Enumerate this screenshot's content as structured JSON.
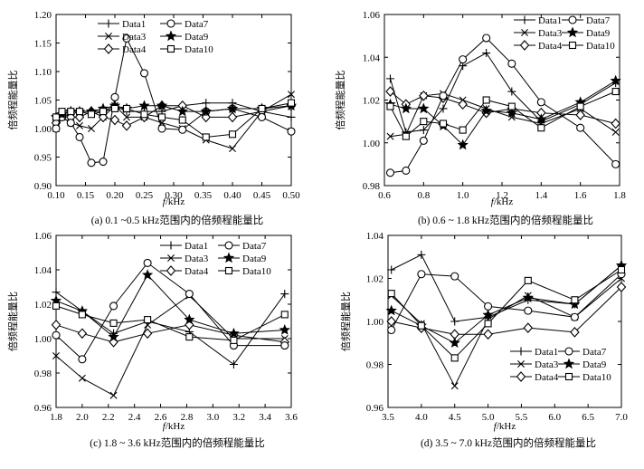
{
  "chart_data": [
    {
      "type": "line",
      "xlabel_italic": "f",
      "xlabel_unit": "/kHz",
      "ylabel": "倍频程能量比",
      "caption": "(a) 0.1 ~0.5 kHz范围内的倍频程能量比",
      "xlim": [
        0.1,
        0.5
      ],
      "ylim": [
        0.9,
        1.2
      ],
      "xticks": [
        0.1,
        0.15,
        0.2,
        0.25,
        0.3,
        0.35,
        0.4,
        0.45,
        0.5
      ],
      "xtick_labels": [
        "0.10",
        "0.15",
        "0.20",
        "0.25",
        "0.30",
        "0.35",
        "0.40",
        "0.45",
        "0.50"
      ],
      "yticks": [
        0.9,
        0.95,
        1.0,
        1.05,
        1.1,
        1.15,
        1.2
      ],
      "ytick_labels": [
        "0.90",
        "0.95",
        "1.00",
        "1.05",
        "1.10",
        "1.15",
        "1.20"
      ],
      "legend_location": "top-left",
      "x": [
        0.1,
        0.11,
        0.125,
        0.14,
        0.16,
        0.18,
        0.2,
        0.22,
        0.25,
        0.28,
        0.315,
        0.355,
        0.4,
        0.45,
        0.5
      ],
      "series": [
        {
          "name": "Data1",
          "marker": "plus",
          "values": [
            1.0,
            1.02,
            1.025,
            1.03,
            1.03,
            1.03,
            1.04,
            1.03,
            1.03,
            1.03,
            1.04,
            1.045,
            1.045,
            1.03,
            1.02
          ]
        },
        {
          "name": "Data3",
          "marker": "x",
          "values": [
            1.0,
            1.02,
            1.01,
            1.005,
            1.0,
            1.02,
            1.04,
            1.02,
            1.02,
            1.01,
            1.0,
            0.98,
            0.965,
            1.03,
            1.06
          ]
        },
        {
          "name": "Data4",
          "marker": "diamond",
          "values": [
            1.01,
            1.025,
            1.02,
            1.02,
            1.03,
            1.02,
            1.015,
            1.005,
            1.02,
            1.04,
            1.04,
            1.02,
            1.02,
            1.03,
            1.04
          ]
        },
        {
          "name": "Data7",
          "marker": "circle",
          "values": [
            1.0,
            1.02,
            1.01,
            0.985,
            0.94,
            0.942,
            1.055,
            1.158,
            1.097,
            1.0,
            0.998,
            1.03,
            1.035,
            1.02,
            0.995
          ]
        },
        {
          "name": "Data9",
          "marker": "star",
          "values": [
            1.02,
            1.025,
            1.03,
            1.03,
            1.03,
            1.035,
            1.04,
            1.035,
            1.04,
            1.04,
            1.03,
            1.03,
            1.035,
            1.035,
            1.04
          ]
        },
        {
          "name": "Data10",
          "marker": "square",
          "values": [
            1.02,
            1.03,
            1.03,
            1.03,
            1.025,
            1.03,
            1.035,
            1.035,
            1.025,
            1.02,
            1.015,
            0.985,
            0.99,
            1.035,
            1.045
          ]
        }
      ]
    },
    {
      "type": "line",
      "xlabel_italic": "f",
      "xlabel_unit": "/kHz",
      "ylabel": "倍频程能量比",
      "caption": "(b) 0.6 ~ 1.8 kHz范围内的倍频程能量比",
      "xlim": [
        0.6,
        1.8
      ],
      "ylim": [
        0.98,
        1.06
      ],
      "xticks": [
        0.6,
        0.8,
        1.0,
        1.2,
        1.4,
        1.6,
        1.8
      ],
      "xtick_labels": [
        "0.6",
        "0.8",
        "1.0",
        "1.2",
        "1.4",
        "1.6",
        "1.8"
      ],
      "yticks": [
        0.98,
        1.0,
        1.02,
        1.04,
        1.06
      ],
      "ytick_labels": [
        "0.98",
        "1.00",
        "1.02",
        "1.04",
        "1.06"
      ],
      "legend_location": "top-right",
      "x": [
        0.63,
        0.71,
        0.8,
        0.9,
        1.0,
        1.12,
        1.25,
        1.4,
        1.6,
        1.78
      ],
      "series": [
        {
          "name": "Data1",
          "marker": "plus",
          "values": [
            1.03,
            1.005,
            1.006,
            1.016,
            1.036,
            1.042,
            1.024,
            1.01,
            1.018,
            1.028
          ]
        },
        {
          "name": "Data3",
          "marker": "x",
          "values": [
            1.003,
            1.004,
            1.022,
            1.023,
            1.02,
            1.016,
            1.012,
            1.009,
            1.016,
            1.005
          ]
        },
        {
          "name": "Data4",
          "marker": "diamond",
          "values": [
            1.024,
            1.018,
            1.022,
            1.021,
            1.018,
            1.014,
            1.016,
            1.014,
            1.013,
            1.009
          ]
        },
        {
          "name": "Data7",
          "marker": "circle",
          "values": [
            0.986,
            0.987,
            1.001,
            1.022,
            1.039,
            1.049,
            1.037,
            1.019,
            1.007,
            0.99
          ]
        },
        {
          "name": "Data9",
          "marker": "star",
          "values": [
            1.018,
            1.016,
            1.016,
            1.008,
            0.999,
            1.015,
            1.014,
            1.011,
            1.019,
            1.029
          ]
        },
        {
          "name": "Data10",
          "marker": "square",
          "values": [
            1.017,
            1.003,
            1.01,
            1.009,
            1.006,
            1.02,
            1.017,
            1.007,
            1.017,
            1.024
          ]
        }
      ]
    },
    {
      "type": "line",
      "xlabel_italic": "f",
      "xlabel_unit": "/kHz",
      "ylabel": "倍频程能量比",
      "caption": "(c) 1.8 ~ 3.6 kHz范围内的倍频程能量比",
      "xlim": [
        1.8,
        3.6
      ],
      "ylim": [
        0.96,
        1.06
      ],
      "xticks": [
        1.8,
        2.0,
        2.2,
        2.4,
        2.6,
        2.8,
        3.0,
        3.2,
        3.4,
        3.6
      ],
      "xtick_labels": [
        "1.8",
        "2.0",
        "2.2",
        "2.4",
        "2.6",
        "2.8",
        "3.0",
        "3.2",
        "3.4",
        "3.6"
      ],
      "yticks": [
        0.96,
        0.98,
        1.0,
        1.02,
        1.04,
        1.06
      ],
      "ytick_labels": [
        "0.96",
        "0.98",
        "1.00",
        "1.02",
        "1.04",
        "1.06"
      ],
      "legend_location": "top-right",
      "x": [
        1.8,
        2.0,
        2.24,
        2.5,
        2.82,
        3.16,
        3.55
      ],
      "series": [
        {
          "name": "Data1",
          "marker": "plus",
          "values": [
            1.027,
            1.016,
            1.003,
            1.01,
            1.004,
            0.985,
            1.026
          ]
        },
        {
          "name": "Data3",
          "marker": "x",
          "values": [
            0.99,
            0.977,
            0.967,
            1.008,
            1.025,
            1.0,
            1.0
          ]
        },
        {
          "name": "Data4",
          "marker": "diamond",
          "values": [
            1.008,
            1.003,
            0.998,
            1.003,
            1.008,
            1.002,
            0.998
          ]
        },
        {
          "name": "Data7",
          "marker": "circle",
          "values": [
            1.002,
            0.988,
            1.019,
            1.044,
            1.026,
            0.996,
            0.996
          ]
        },
        {
          "name": "Data9",
          "marker": "star",
          "values": [
            1.022,
            1.016,
            1.001,
            1.037,
            1.011,
            1.003,
            1.005
          ]
        },
        {
          "name": "Data10",
          "marker": "square",
          "values": [
            1.019,
            1.014,
            1.009,
            1.011,
            1.001,
            0.999,
            1.014
          ]
        }
      ]
    },
    {
      "type": "line",
      "xlabel_italic": "f",
      "xlabel_unit": "/kHz",
      "ylabel": "倍频程能量比",
      "caption": "(d) 3.5 ~ 7.0 kHz范围内的倍频程能量比",
      "xlim": [
        3.5,
        7.0
      ],
      "ylim": [
        0.96,
        1.04
      ],
      "xticks": [
        3.5,
        4.0,
        4.5,
        5.0,
        5.5,
        6.0,
        6.5,
        7.0
      ],
      "xtick_labels": [
        "3.5",
        "4.0",
        "4.5",
        "5.0",
        "5.5",
        "6.0",
        "6.5",
        "7.0"
      ],
      "yticks": [
        0.96,
        0.98,
        1.0,
        1.02,
        1.04
      ],
      "ytick_labels": [
        "0.96",
        "0.98",
        "1.00",
        "1.02",
        "1.04"
      ],
      "legend_location": "bottom-right",
      "x": [
        3.55,
        4.0,
        4.5,
        5.0,
        5.6,
        6.3,
        7.0
      ],
      "series": [
        {
          "name": "Data1",
          "marker": "plus",
          "values": [
            1.024,
            1.031,
            1.0,
            1.002,
            1.01,
            1.008,
            1.026
          ]
        },
        {
          "name": "Data3",
          "marker": "x",
          "values": [
            1.012,
            0.999,
            0.97,
            1.001,
            1.012,
            1.002,
            1.02
          ]
        },
        {
          "name": "Data4",
          "marker": "diamond",
          "values": [
            1.0,
            0.997,
            0.994,
            0.994,
            0.997,
            0.995,
            1.016
          ]
        },
        {
          "name": "Data7",
          "marker": "circle",
          "values": [
            0.996,
            1.022,
            1.021,
            1.007,
            1.005,
            1.002,
            1.022
          ]
        },
        {
          "name": "Data9",
          "marker": "star",
          "values": [
            1.005,
            0.998,
            0.99,
            1.003,
            1.011,
            1.008,
            1.026
          ]
        },
        {
          "name": "Data10",
          "marker": "square",
          "values": [
            1.013,
            0.998,
            0.983,
            0.999,
            1.019,
            1.01,
            1.024
          ]
        }
      ]
    }
  ]
}
